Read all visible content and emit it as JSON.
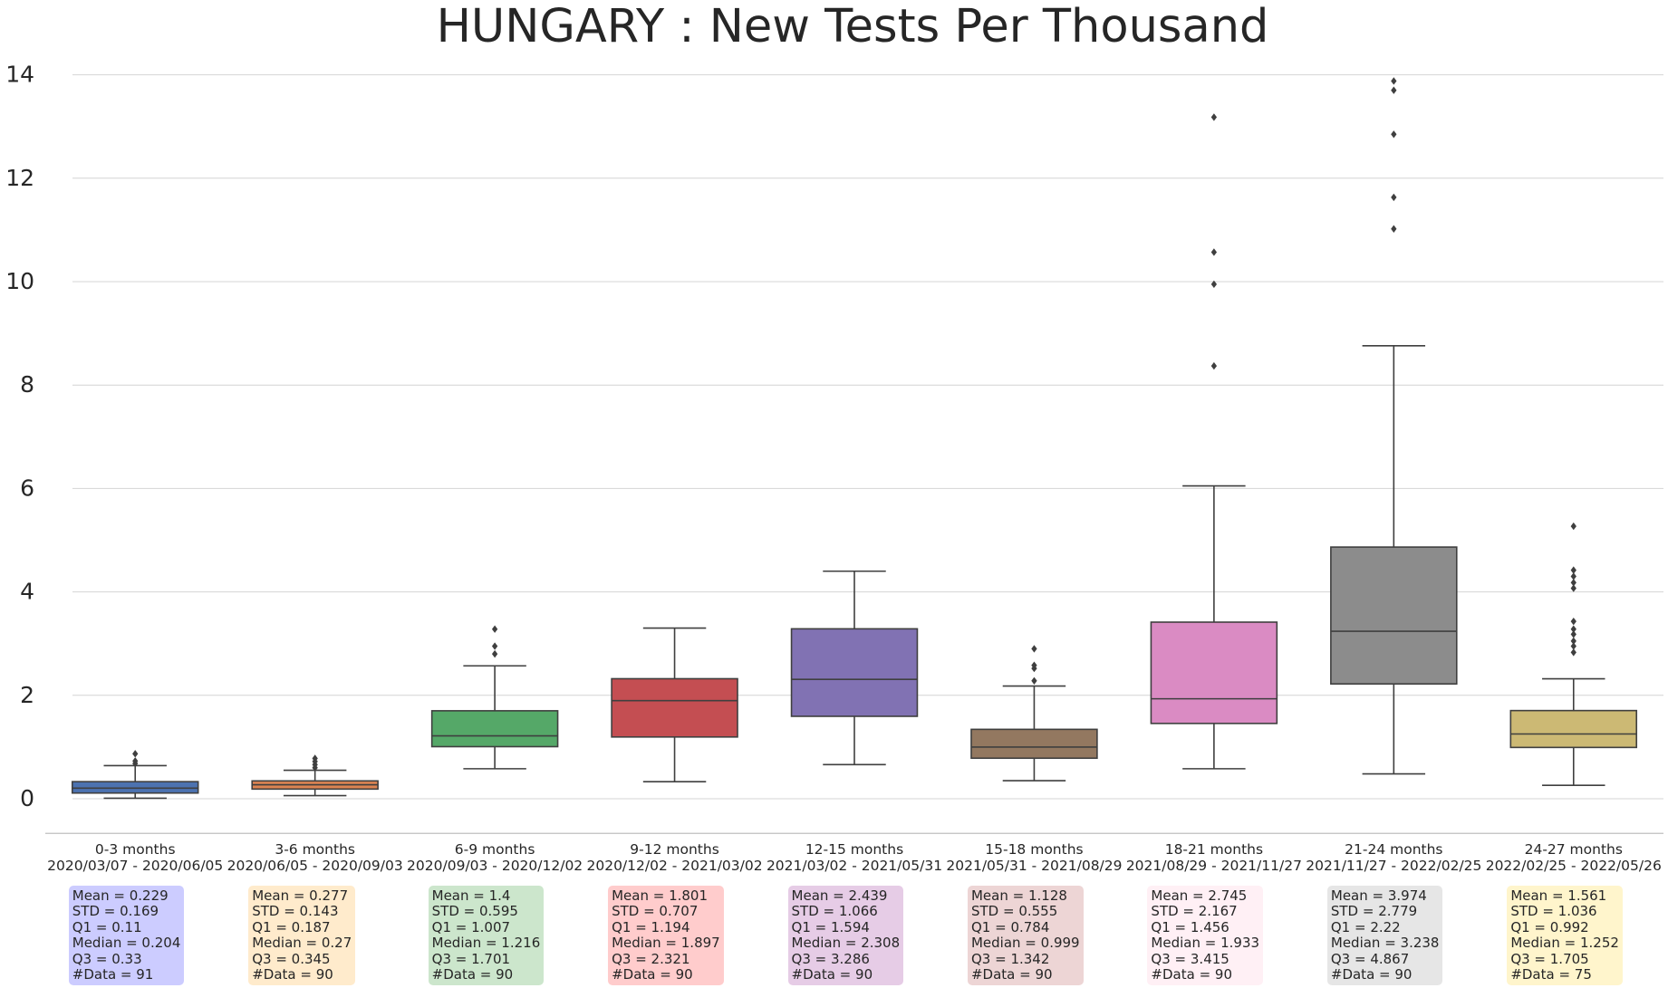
{
  "chart_data": {
    "type": "box",
    "title": "HUNGARY : New Tests Per Thousand",
    "xlabel": "",
    "ylabel": "",
    "ylim": [
      -0.67,
      14.5
    ],
    "yticks": [
      0,
      2,
      4,
      6,
      8,
      10,
      12,
      14
    ],
    "grid": "horizontal",
    "groups": [
      {
        "label": "0-3 months",
        "range": "2020/03/07 - 2020/06/05",
        "color": "#4c72b0",
        "stats_bg": "#ccccff",
        "q1": 0.11,
        "median": 0.204,
        "q3": 0.33,
        "whisker_low": 0.01,
        "whisker_high": 0.64,
        "outliers": [
          0.68,
          0.73,
          0.87
        ],
        "stats": [
          "Mean = 0.229",
          "STD = 0.169",
          "Q1 = 0.11",
          "Median = 0.204",
          "Q3 = 0.33",
          "#Data = 91"
        ]
      },
      {
        "label": "3-6 months",
        "range": "2020/06/05 - 2020/09/03",
        "color": "#dd8452",
        "stats_bg": "#ffebcc",
        "q1": 0.187,
        "median": 0.27,
        "q3": 0.345,
        "whisker_low": 0.06,
        "whisker_high": 0.55,
        "outliers": [
          0.6,
          0.66,
          0.72,
          0.78
        ],
        "stats": [
          "Mean = 0.277",
          "STD = 0.143",
          "Q1 = 0.187",
          "Median = 0.27",
          "Q3 = 0.345",
          "#Data = 90"
        ]
      },
      {
        "label": "6-9 months",
        "range": "2020/09/03 - 2020/12/02",
        "color": "#55a868",
        "stats_bg": "#cce6cc",
        "q1": 1.007,
        "median": 1.216,
        "q3": 1.701,
        "whisker_low": 0.58,
        "whisker_high": 2.57,
        "outliers": [
          2.8,
          2.95,
          3.28
        ],
        "stats": [
          "Mean = 1.4",
          "STD = 0.595",
          "Q1 = 1.007",
          "Median = 1.216",
          "Q3 = 1.701",
          "#Data = 90"
        ]
      },
      {
        "label": "9-12 months",
        "range": "2020/12/02 - 2021/03/02",
        "color": "#c44e52",
        "stats_bg": "#ffcccc",
        "q1": 1.194,
        "median": 1.897,
        "q3": 2.321,
        "whisker_low": 0.33,
        "whisker_high": 3.3,
        "outliers": [],
        "stats": [
          "Mean = 1.801",
          "STD = 0.707",
          "Q1 = 1.194",
          "Median = 1.897",
          "Q3 = 2.321",
          "#Data = 90"
        ]
      },
      {
        "label": "12-15 months",
        "range": "2021/03/02 - 2021/05/31",
        "color": "#8172b3",
        "stats_bg": "#e6cce6",
        "q1": 1.594,
        "median": 2.308,
        "q3": 3.286,
        "whisker_low": 0.66,
        "whisker_high": 4.4,
        "outliers": [],
        "stats": [
          "Mean = 2.439",
          "STD = 1.066",
          "Q1 = 1.594",
          "Median = 2.308",
          "Q3 = 3.286",
          "#Data = 90"
        ]
      },
      {
        "label": "15-18 months",
        "range": "2021/05/31 - 2021/08/29",
        "color": "#937860",
        "stats_bg": "#edd5d5",
        "q1": 0.784,
        "median": 0.999,
        "q3": 1.342,
        "whisker_low": 0.35,
        "whisker_high": 2.18,
        "outliers": [
          2.28,
          2.52,
          2.58,
          2.9
        ],
        "stats": [
          "Mean = 1.128",
          "STD = 0.555",
          "Q1 = 0.784",
          "Median = 0.999",
          "Q3 = 1.342",
          "#Data = 90"
        ]
      },
      {
        "label": "18-21 months",
        "range": "2021/08/29 - 2021/11/27",
        "color": "#da8bc3",
        "stats_bg": "#fff0f5",
        "q1": 1.456,
        "median": 1.933,
        "q3": 3.415,
        "whisker_low": 0.58,
        "whisker_high": 6.05,
        "outliers": [
          8.37,
          9.95,
          10.57,
          13.18
        ],
        "stats": [
          "Mean = 2.745",
          "STD = 2.167",
          "Q1 = 1.456",
          "Median = 1.933",
          "Q3 = 3.415",
          "#Data = 90"
        ]
      },
      {
        "label": "21-24 months",
        "range": "2021/11/27 - 2022/02/25",
        "color": "#8c8c8c",
        "stats_bg": "#e6e6e6",
        "q1": 2.22,
        "median": 3.238,
        "q3": 4.867,
        "whisker_low": 0.48,
        "whisker_high": 8.76,
        "outliers": [
          11.02,
          11.63,
          12.85,
          13.7,
          13.88
        ],
        "stats": [
          "Mean = 3.974",
          "STD = 2.779",
          "Q1 = 2.22",
          "Median = 3.238",
          "Q3 = 4.867",
          "#Data = 90"
        ]
      },
      {
        "label": "24-27 months",
        "range": "2022/02/25 - 2022/05/26",
        "color": "#ccb974",
        "stats_bg": "#fff5cc",
        "q1": 0.992,
        "median": 1.252,
        "q3": 1.705,
        "whisker_low": 0.26,
        "whisker_high": 2.32,
        "outliers": [
          2.83,
          2.95,
          3.05,
          3.18,
          3.28,
          3.43,
          4.07,
          4.18,
          4.3,
          4.42,
          5.27
        ],
        "stats": [
          "Mean = 1.561",
          "STD = 1.036",
          "Q1 = 0.992",
          "Median = 1.252",
          "Q3 = 1.705",
          "#Data = 75"
        ]
      }
    ]
  }
}
